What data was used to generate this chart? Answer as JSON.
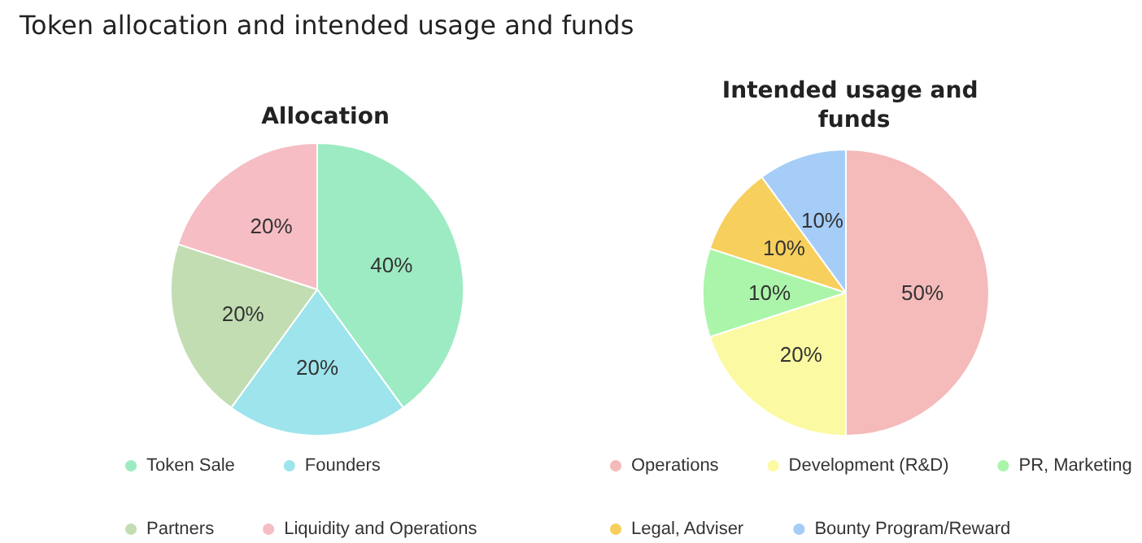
{
  "chart_data": [
    {
      "type": "pie",
      "title": "Token allocation and intended usage and funds",
      "subtitle": "Allocation",
      "categories": [
        "Token Sale",
        "Founders",
        "Partners",
        "Liquidity and Operations"
      ],
      "values": [
        40,
        20,
        20,
        20
      ],
      "value_labels": [
        "40%",
        "20%",
        "20%",
        "20%"
      ],
      "colors": [
        "#9debc2",
        "#9de4ec",
        "#c2ddb2",
        "#f6bdc4"
      ],
      "legend": "bottom"
    },
    {
      "type": "pie",
      "title": "Intended usage and funds",
      "categories": [
        "Operations",
        "Development (R&D)",
        "PR, Marketing",
        "Legal, Adviser",
        "Bounty Program/Reward"
      ],
      "values": [
        50,
        20,
        10,
        10,
        10
      ],
      "value_labels": [
        "50%",
        "20%",
        "10%",
        "10%",
        "10%"
      ],
      "colors": [
        "#f5baba",
        "#fbfaa2",
        "#aaf5aa",
        "#f7cf5c",
        "#a5cdf8"
      ],
      "legend": "bottom"
    }
  ]
}
